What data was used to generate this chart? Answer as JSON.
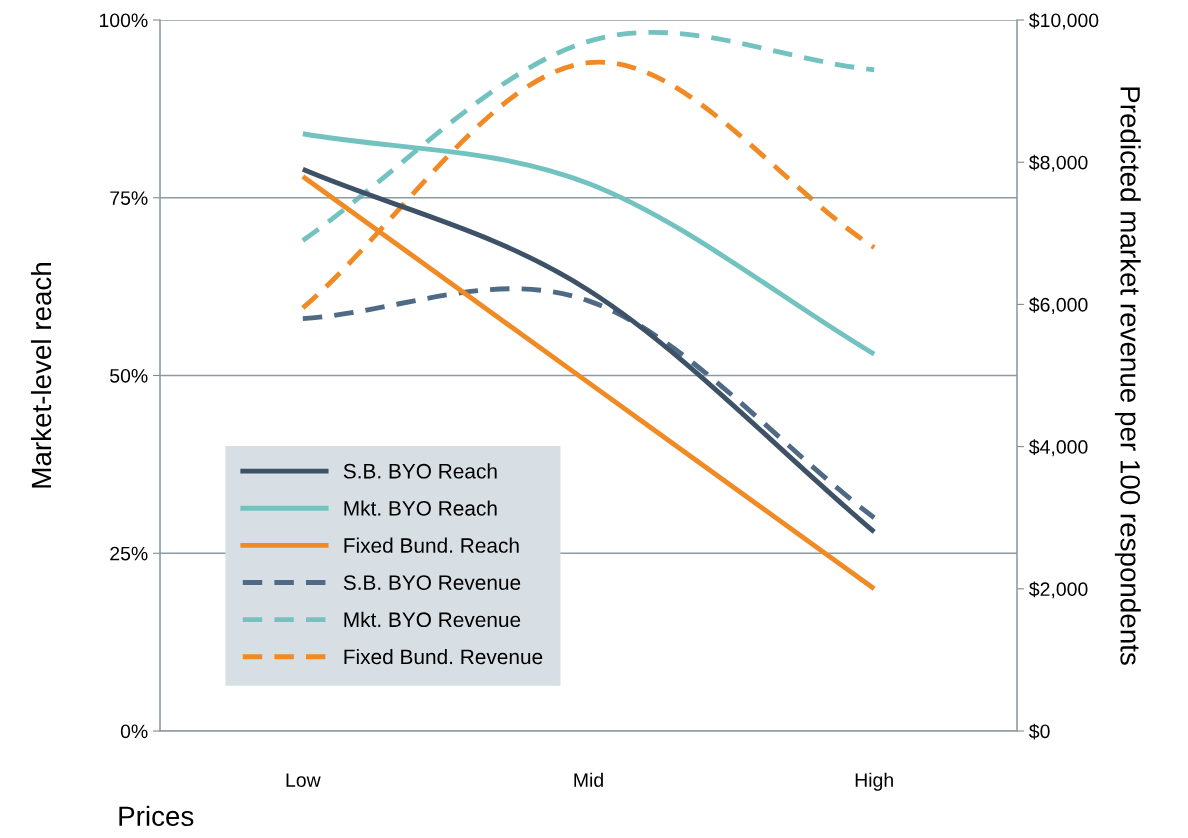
{
  "chart_data": {
    "type": "line",
    "categories": [
      "Low",
      "Mid",
      "High"
    ],
    "xlabel": "Prices",
    "ylabel": "Market-level reach",
    "y2label": "Predicted market revenue per 100 respondents",
    "ylim": [
      0,
      100
    ],
    "yticks": [
      {
        "value": 0,
        "label": "0%"
      },
      {
        "value": 25,
        "label": "25%"
      },
      {
        "value": 50,
        "label": "50%"
      },
      {
        "value": 75,
        "label": "75%"
      },
      {
        "value": 100,
        "label": "100%"
      }
    ],
    "y2lim": [
      0,
      10000
    ],
    "y2ticks": [
      {
        "value": 0,
        "label": "$0"
      },
      {
        "value": 2000,
        "label": "$2,000"
      },
      {
        "value": 4000,
        "label": "$4,000"
      },
      {
        "value": 6000,
        "label": "$6,000"
      },
      {
        "value": 8000,
        "label": "$8,000"
      },
      {
        "value": 10000,
        "label": "$10,000"
      }
    ],
    "grid": "y",
    "legend": "bottom left",
    "marker": "none",
    "series": [
      {
        "name": "S.B. BYO Reach",
        "color": "#3d5266",
        "values": [
          79,
          62,
          28
        ],
        "line_style": "solid"
      },
      {
        "name": "Mkt. BYO Reach",
        "color": "#72c3c0",
        "values": [
          84,
          77,
          53
        ],
        "line_style": "solid"
      },
      {
        "name": "Fixed Bund. Reach",
        "color": "#f08a24",
        "values": [
          78,
          49,
          20
        ],
        "line_style": "solid"
      },
      {
        "name": "S.B. BYO Revenue",
        "color": "#4e6a84",
        "values": [
          5800,
          6050,
          3000
        ],
        "line_style": "dashed",
        "axis": "y2"
      },
      {
        "name": "Mkt. BYO Revenue",
        "color": "#72c3c0",
        "values": [
          6900,
          9700,
          9300
        ],
        "line_style": "dashed",
        "axis": "y2"
      },
      {
        "name": "Fixed Bund. Revenue",
        "color": "#f08a24",
        "values": [
          5950,
          9400,
          6800
        ],
        "line_style": "dashed",
        "axis": "y2"
      }
    ]
  }
}
